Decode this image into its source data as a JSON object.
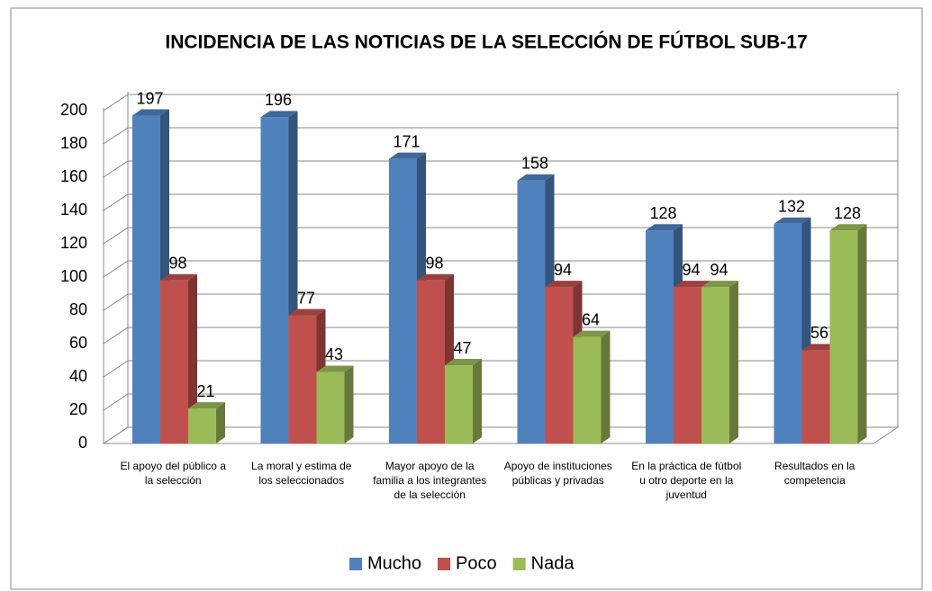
{
  "chart_data": {
    "type": "bar",
    "title": "INCIDENCIA DE LAS NOTICIAS DE LA SELECCIÓN DE FÚTBOL SUB-17",
    "categories": [
      "El apoyo del público a la selección",
      "La moral y estima de los seleccionados",
      "Mayor apoyo de la familia a los integrantes de la selección",
      "Apoyo de instituciones públicas y privadas",
      "En la práctica de fútbol u otro deporte en la juventud",
      "Resultados en la competencia"
    ],
    "series": [
      {
        "name": "Mucho",
        "color": "#4F81BD",
        "values": [
          197,
          196,
          171,
          158,
          128,
          132
        ]
      },
      {
        "name": "Poco",
        "color": "#C0504D",
        "values": [
          98,
          77,
          98,
          94,
          94,
          56
        ]
      },
      {
        "name": "Nada",
        "color": "#9BBB59",
        "values": [
          21,
          43,
          47,
          64,
          94,
          128
        ]
      }
    ],
    "ylim": [
      0,
      200
    ],
    "yticks": [
      0,
      20,
      40,
      60,
      80,
      100,
      120,
      140,
      160,
      180,
      200
    ],
    "grid": true,
    "legend": "bottom"
  }
}
